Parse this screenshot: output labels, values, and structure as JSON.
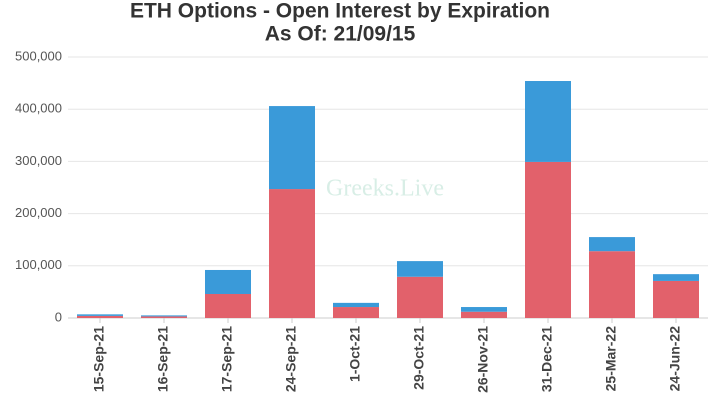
{
  "chart_data": {
    "type": "stacked_bar",
    "title": "ETH Options - Open Interest by Expiration",
    "subtitle": "As Of: 21/09/15",
    "watermark": "Greeks.Live",
    "categories": [
      "15-Sep-21",
      "16-Sep-21",
      "17-Sep-21",
      "24-Sep-21",
      "1-Oct-21",
      "29-Oct-21",
      "26-Nov-21",
      "31-Dec-21",
      "25-Mar-22",
      "24-Jun-22"
    ],
    "series": [
      {
        "color": "#e2616b",
        "values": [
          4000,
          3000,
          46000,
          247000,
          21000,
          79000,
          12000,
          299000,
          128000,
          71000
        ]
      },
      {
        "color": "#3a9ad9",
        "values": [
          3000,
          2000,
          46000,
          159000,
          8000,
          30000,
          9000,
          155000,
          27000,
          13000
        ]
      }
    ],
    "ylim": [
      0,
      500000
    ],
    "yticks": [
      0,
      {
        "value": 100000,
        "label": "100,000"
      },
      {
        "value": 200000,
        "label": "200,000"
      },
      {
        "value": 300000,
        "label": "300,000"
      },
      {
        "value": 400000,
        "label": "400,000"
      },
      {
        "value": 500000,
        "label": "500,000"
      }
    ],
    "grid": true
  }
}
